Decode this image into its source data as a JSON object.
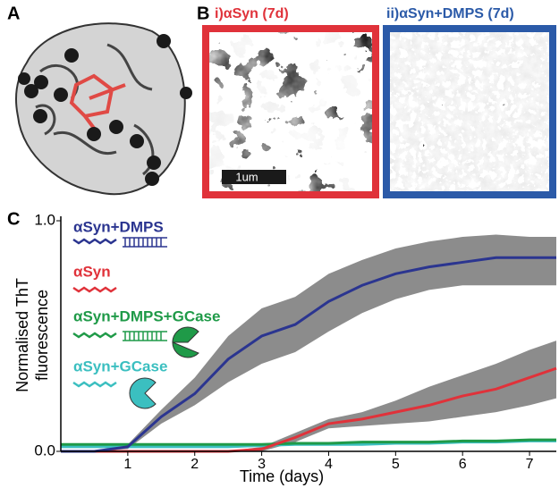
{
  "figure": {
    "panel_a": "A",
    "panel_b": "B",
    "panel_c": "C",
    "image_i": "i)αSyn (7d)",
    "image_ii": "ii)αSyn+DMPS (7d)",
    "scale_bar": "1um"
  },
  "chart_data": {
    "type": "line",
    "ylabel": [
      "Normalised ThT",
      "fluorescence"
    ],
    "xlabel": "Time (days)",
    "xlim": [
      0,
      7.4
    ],
    "xticks": [
      1,
      2,
      3,
      4,
      5,
      6,
      7
    ],
    "ylim": [
      0,
      1
    ],
    "yticks": [
      {
        "value": 0,
        "label": "0.0"
      },
      {
        "value": 1,
        "label": "1.0"
      }
    ],
    "x": [
      0,
      0.5,
      1,
      1.5,
      2,
      2.5,
      3,
      3.5,
      4,
      4.5,
      5,
      5.5,
      6,
      6.5,
      7,
      7.4
    ],
    "band_color": "#8c8c8c",
    "series": [
      {
        "name": "αSyn+DMPS",
        "color": "#2b3590",
        "values": [
          0,
          0,
          0.02,
          0.15,
          0.25,
          0.4,
          0.5,
          0.55,
          0.65,
          0.72,
          0.77,
          0.8,
          0.82,
          0.84,
          0.84,
          0.84
        ],
        "band_lower": [
          0,
          0,
          0.01,
          0.12,
          0.2,
          0.3,
          0.38,
          0.43,
          0.52,
          0.6,
          0.66,
          0.7,
          0.72,
          0.72,
          0.72,
          0.72
        ],
        "band_upper": [
          0,
          0,
          0.03,
          0.18,
          0.32,
          0.5,
          0.62,
          0.67,
          0.77,
          0.83,
          0.88,
          0.91,
          0.93,
          0.94,
          0.93,
          0.93
        ]
      },
      {
        "name": "αSyn",
        "color": "#e0323a",
        "values": [
          0,
          0,
          0,
          0,
          0,
          0,
          0.01,
          0.06,
          0.12,
          0.14,
          0.17,
          0.2,
          0.24,
          0.27,
          0.32,
          0.36
        ],
        "band_lower": [
          0,
          0,
          0,
          0,
          0,
          0,
          0,
          0.04,
          0.1,
          0.11,
          0.12,
          0.13,
          0.15,
          0.17,
          0.2,
          0.23
        ],
        "band_upper": [
          0,
          0,
          0,
          0,
          0,
          0,
          0.02,
          0.08,
          0.14,
          0.17,
          0.22,
          0.28,
          0.33,
          0.38,
          0.44,
          0.48
        ]
      },
      {
        "name": "αSyn+DMPS+GCase",
        "color": "#1f9a48",
        "values": [
          0.03,
          0.03,
          0.03,
          0.03,
          0.03,
          0.03,
          0.03,
          0.035,
          0.035,
          0.04,
          0.04,
          0.04,
          0.045,
          0.045,
          0.05,
          0.05
        ]
      },
      {
        "name": "αSyn+GCase",
        "color": "#3bbfc0",
        "values": [
          0.02,
          0.02,
          0.02,
          0.02,
          0.02,
          0.02,
          0.025,
          0.03,
          0.03,
          0.03,
          0.035,
          0.035,
          0.04,
          0.04,
          0.045,
          0.045
        ]
      }
    ]
  }
}
